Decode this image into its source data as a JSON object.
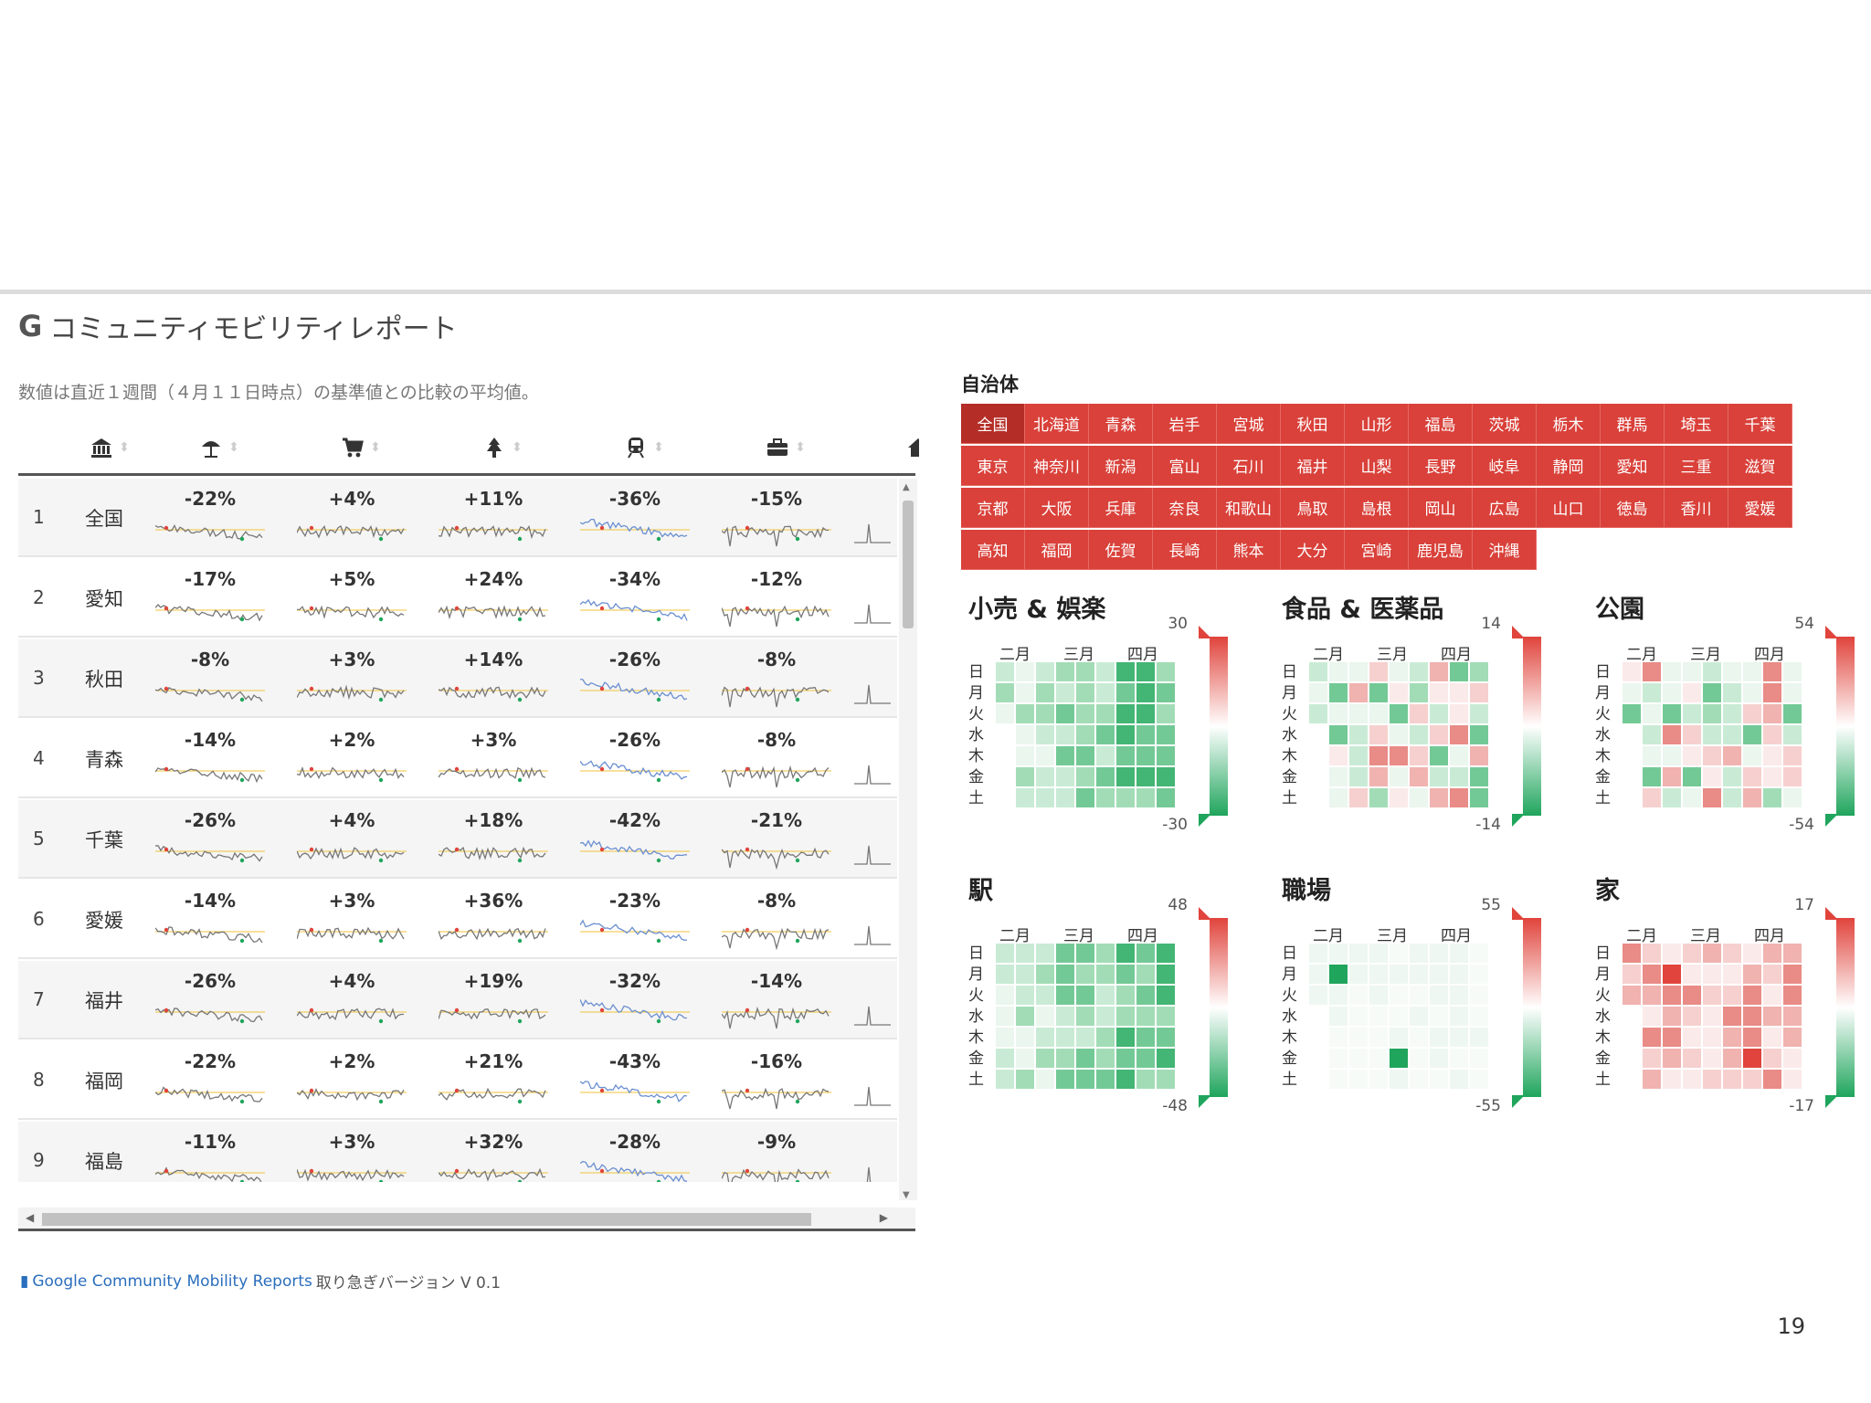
{
  "header": {
    "title": "コミュニティモビリティレポート",
    "subtitle": "数値は直近１週間（４月１１日時点）の基準値との比較の平均値。"
  },
  "table": {
    "columns": [
      {
        "icon": "government-building-icon"
      },
      {
        "icon": "beach-umbrella-icon"
      },
      {
        "icon": "shopping-cart-icon"
      },
      {
        "icon": "park-tree-icon"
      },
      {
        "icon": "train-icon"
      },
      {
        "icon": "briefcase-icon"
      },
      {
        "icon": "home-icon"
      }
    ],
    "rows": [
      {
        "rank": "1",
        "pref": "全国",
        "values": [
          "-22%",
          "+4%",
          "+11%",
          "-36%",
          "-15%"
        ]
      },
      {
        "rank": "2",
        "pref": "愛知",
        "values": [
          "-17%",
          "+5%",
          "+24%",
          "-34%",
          "-12%"
        ]
      },
      {
        "rank": "3",
        "pref": "秋田",
        "values": [
          "-8%",
          "+3%",
          "+14%",
          "-26%",
          "-8%"
        ]
      },
      {
        "rank": "4",
        "pref": "青森",
        "values": [
          "-14%",
          "+2%",
          "+3%",
          "-26%",
          "-8%"
        ]
      },
      {
        "rank": "5",
        "pref": "千葉",
        "values": [
          "-26%",
          "+4%",
          "+18%",
          "-42%",
          "-21%"
        ]
      },
      {
        "rank": "6",
        "pref": "愛媛",
        "values": [
          "-14%",
          "+3%",
          "+36%",
          "-23%",
          "-8%"
        ]
      },
      {
        "rank": "7",
        "pref": "福井",
        "values": [
          "-26%",
          "+4%",
          "+19%",
          "-32%",
          "-14%"
        ]
      },
      {
        "rank": "8",
        "pref": "福岡",
        "values": [
          "-22%",
          "+2%",
          "+21%",
          "-43%",
          "-16%"
        ]
      },
      {
        "rank": "9",
        "pref": "福島",
        "values": [
          "-11%",
          "+3%",
          "+32%",
          "-28%",
          "-9%"
        ]
      }
    ]
  },
  "prefecture_selector": {
    "title": "自治体",
    "selected": "全国",
    "rows": [
      [
        "全国",
        "北海道",
        "青森",
        "岩手",
        "宮城",
        "秋田",
        "山形",
        "福島",
        "茨城",
        "栃木",
        "群馬",
        "埼玉",
        "千葉"
      ],
      [
        "東京",
        "神奈川",
        "新潟",
        "富山",
        "石川",
        "福井",
        "山梨",
        "長野",
        "岐阜",
        "静岡",
        "愛知",
        "三重",
        "滋賀"
      ],
      [
        "京都",
        "大阪",
        "兵庫",
        "奈良",
        "和歌山",
        "鳥取",
        "島根",
        "岡山",
        "広島",
        "山口",
        "徳島",
        "香川",
        "愛媛"
      ],
      [
        "高知",
        "福岡",
        "佐賀",
        "長崎",
        "熊本",
        "大分",
        "宮崎",
        "鹿児島",
        "沖縄"
      ]
    ]
  },
  "heatmaps": [
    {
      "title": "小売 & 娯楽",
      "max": "30",
      "min": "-30",
      "scheme": "green"
    },
    {
      "title": "食品 & 医薬品",
      "max": "14",
      "min": "-14",
      "scheme": "mixed"
    },
    {
      "title": "公園",
      "max": "54",
      "min": "-54",
      "scheme": "mixed"
    },
    {
      "title": "駅",
      "max": "48",
      "min": "-48",
      "scheme": "green"
    },
    {
      "title": "職場",
      "max": "55",
      "min": "-55",
      "scheme": "pale"
    },
    {
      "title": "家",
      "max": "17",
      "min": "-17",
      "scheme": "red"
    }
  ],
  "heatmap_months": [
    "二月",
    "三月",
    "四月"
  ],
  "heatmap_days": [
    "日",
    "月",
    "火",
    "水",
    "木",
    "金",
    "土"
  ],
  "colors": {
    "accent_red": "#d9413a",
    "positive_red": "#e0443c",
    "negative_green": "#1fa55c"
  },
  "footer": {
    "link_text": "Google Community Mobility Reports",
    "version_text": "取り急ぎバージョン V 0.1"
  },
  "page_number": "19"
}
